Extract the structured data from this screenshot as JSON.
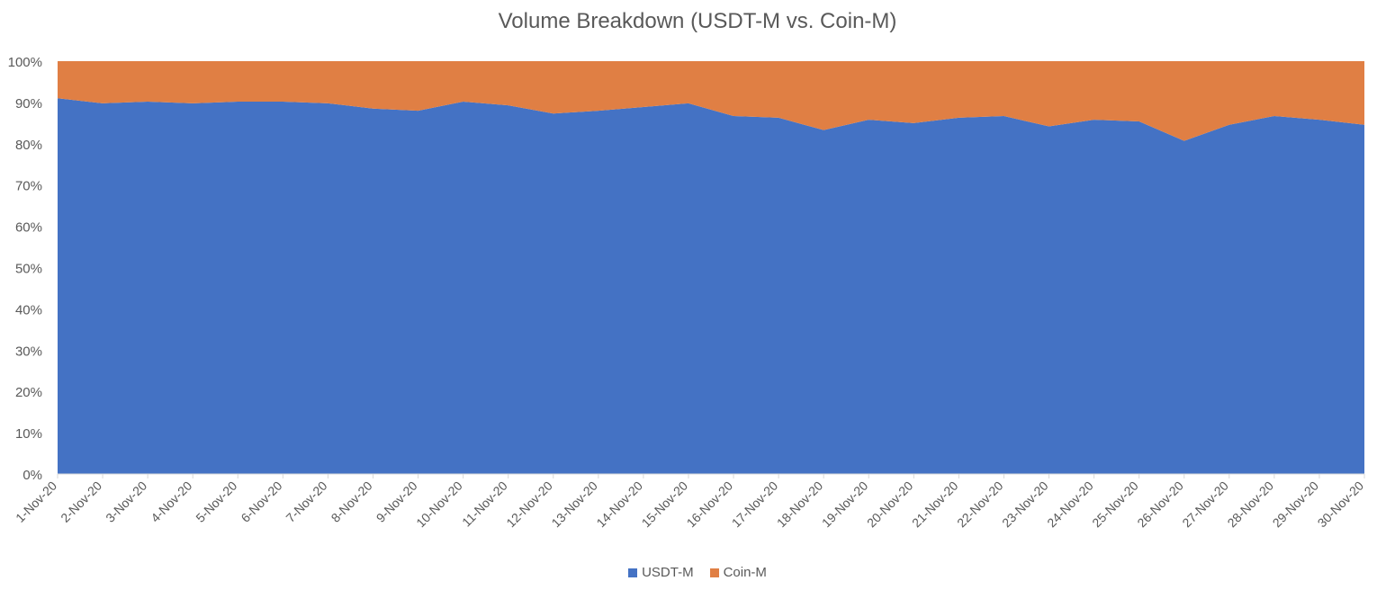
{
  "chart_data": {
    "type": "area",
    "stacked": "percent",
    "title": "Volume Breakdown (USDT-M vs. Coin-M)",
    "xlabel": "",
    "ylabel": "",
    "ylim": [
      0,
      100
    ],
    "y_ticks": [
      "0%",
      "10%",
      "20%",
      "30%",
      "40%",
      "50%",
      "60%",
      "70%",
      "80%",
      "90%",
      "100%"
    ],
    "categories": [
      "1-Nov-20",
      "2-Nov-20",
      "3-Nov-20",
      "4-Nov-20",
      "5-Nov-20",
      "6-Nov-20",
      "7-Nov-20",
      "8-Nov-20",
      "9-Nov-20",
      "10-Nov-20",
      "11-Nov-20",
      "12-Nov-20",
      "13-Nov-20",
      "14-Nov-20",
      "15-Nov-20",
      "16-Nov-20",
      "17-Nov-20",
      "18-Nov-20",
      "19-Nov-20",
      "20-Nov-20",
      "21-Nov-20",
      "22-Nov-20",
      "23-Nov-20",
      "24-Nov-20",
      "25-Nov-20",
      "26-Nov-20",
      "27-Nov-20",
      "28-Nov-20",
      "29-Nov-20",
      "30-Nov-20"
    ],
    "series": [
      {
        "name": "USDT-M",
        "color": "#4472C4",
        "values": [
          91,
          89.8,
          90.2,
          89.8,
          90.2,
          90.2,
          89.8,
          88.5,
          88,
          90.2,
          89.3,
          87.3,
          88,
          88.9,
          89.8,
          86.7,
          86.3,
          83.3,
          85.8,
          85,
          86.3,
          86.7,
          84.2,
          85.8,
          85.4,
          80.7,
          84.6,
          86.7,
          85.8,
          84.6
        ]
      },
      {
        "name": "Coin-M",
        "color": "#E07F44",
        "values": [
          9,
          10.2,
          9.8,
          10.2,
          9.8,
          9.8,
          10.2,
          11.5,
          12,
          9.8,
          10.7,
          12.7,
          12,
          11.1,
          10.2,
          13.3,
          13.7,
          16.7,
          14.2,
          15,
          13.7,
          13.3,
          15.8,
          14.2,
          14.6,
          19.3,
          15.4,
          13.3,
          14.2,
          15.4
        ]
      }
    ],
    "grid": false,
    "legend_position": "bottom"
  }
}
